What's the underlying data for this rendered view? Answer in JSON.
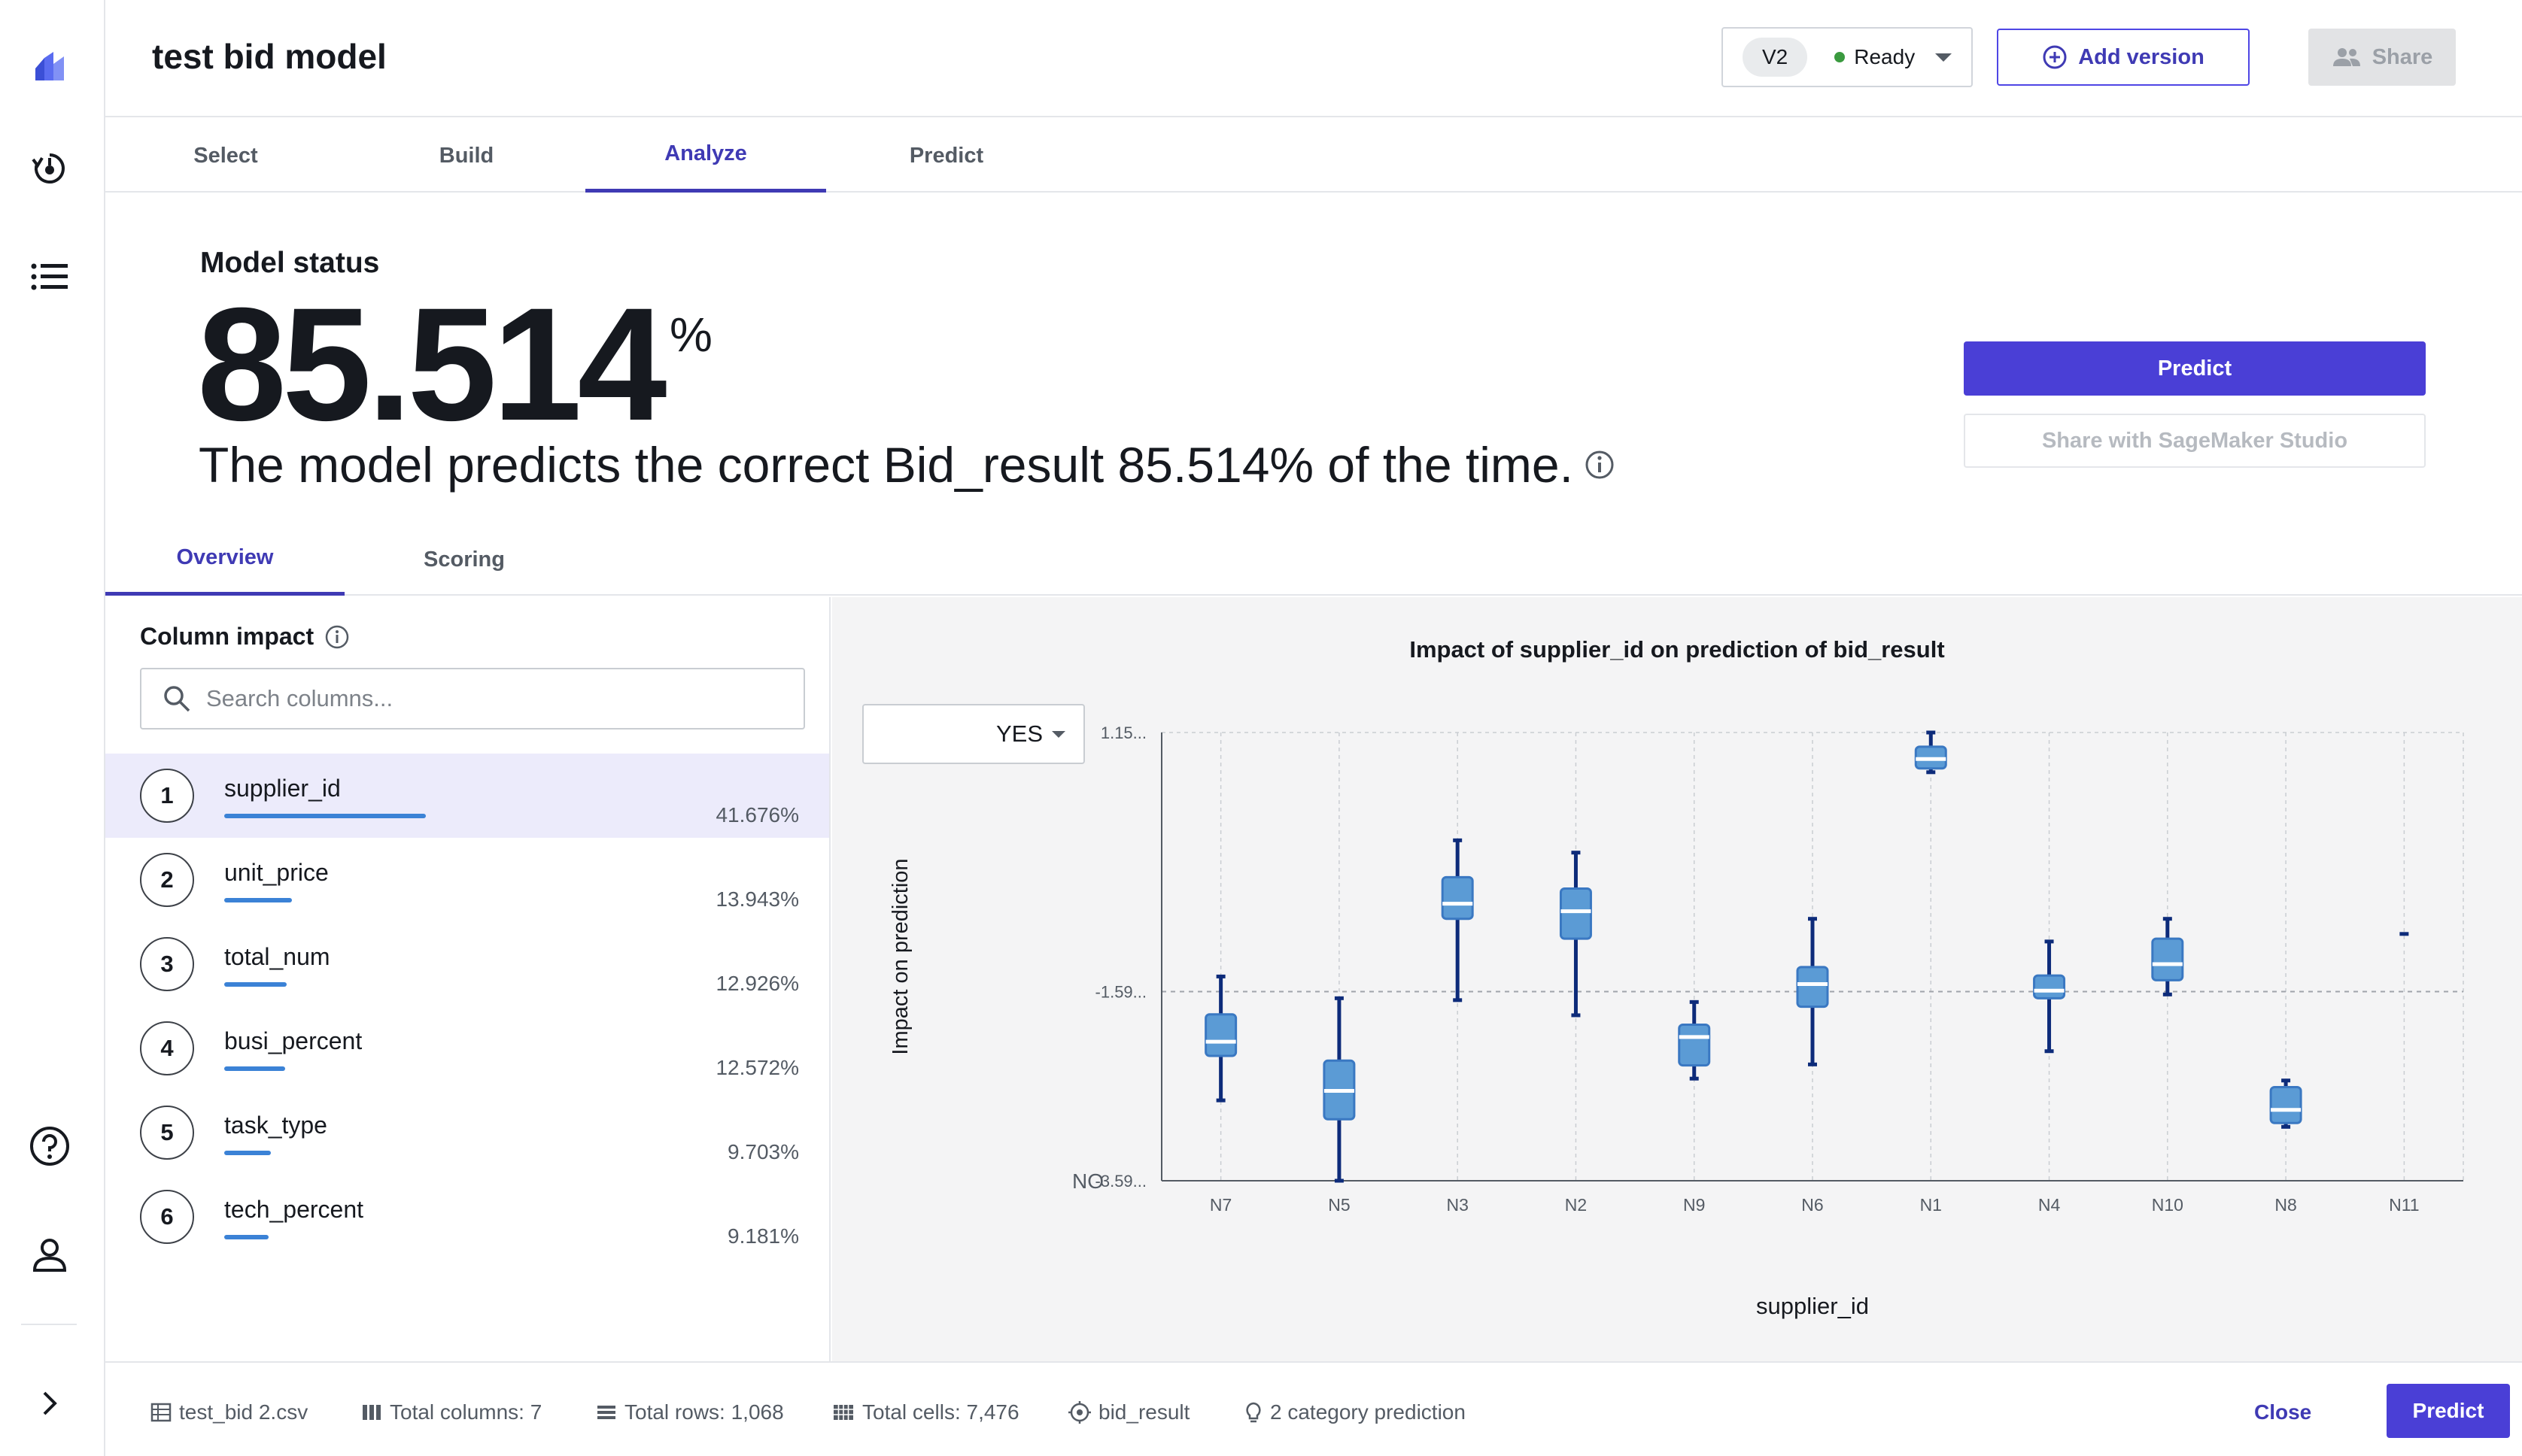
{
  "app": {
    "title": "test bid model"
  },
  "header": {
    "version": "V2",
    "status": "Ready",
    "add_version_label": "Add version",
    "share_label": "Share"
  },
  "tabs": [
    {
      "label": "Select",
      "active": false
    },
    {
      "label": "Build",
      "active": false
    },
    {
      "label": "Analyze",
      "active": true
    },
    {
      "label": "Predict",
      "active": false
    }
  ],
  "model_status": {
    "label": "Model status",
    "accuracy": "85.514",
    "percent_sign": "%",
    "description": "The model predicts the correct Bid_result 85.514% of the time.",
    "predict_button": "Predict",
    "share_button": "Share with SageMaker Studio"
  },
  "subtabs": [
    {
      "label": "Overview",
      "active": true
    },
    {
      "label": "Scoring",
      "active": false
    }
  ],
  "column_impact": {
    "title": "Column impact",
    "search_placeholder": "Search columns...",
    "columns": [
      {
        "rank": "1",
        "name": "supplier_id",
        "impact": "41.676%",
        "value": 41.676,
        "selected": true
      },
      {
        "rank": "2",
        "name": "unit_price",
        "impact": "13.943%",
        "value": 13.943,
        "selected": false
      },
      {
        "rank": "3",
        "name": "total_num",
        "impact": "12.926%",
        "value": 12.926,
        "selected": false
      },
      {
        "rank": "4",
        "name": "busi_percent",
        "impact": "12.572%",
        "value": 12.572,
        "selected": false
      },
      {
        "rank": "5",
        "name": "task_type",
        "impact": "9.703%",
        "value": 9.703,
        "selected": false
      },
      {
        "rank": "6",
        "name": "tech_percent",
        "impact": "9.181%",
        "value": 9.181,
        "selected": false
      }
    ]
  },
  "chart": {
    "class_select": "YES",
    "no_label": "NO"
  },
  "chart_data": {
    "type": "boxplot",
    "title": "Impact of supplier_id on prediction of bid_result",
    "xlabel": "supplier_id",
    "ylabel": "Impact on prediction",
    "y_tick_labels": [
      "1.15...",
      "-1.59...",
      "-3.59..."
    ],
    "ylim": [
      -3.59,
      1.15
    ],
    "categories": [
      "N7",
      "N5",
      "N3",
      "N2",
      "N9",
      "N6",
      "N1",
      "N4",
      "N10",
      "N8",
      "N11"
    ],
    "boxes": [
      {
        "name": "N7",
        "min": -2.74,
        "q1": -2.27,
        "median": -2.12,
        "q3": -1.83,
        "max": -1.43
      },
      {
        "name": "N5",
        "min": -3.59,
        "q1": -2.94,
        "median": -2.64,
        "q3": -2.32,
        "max": -1.66
      },
      {
        "name": "N3",
        "min": -1.68,
        "q1": -0.82,
        "median": -0.66,
        "q3": -0.38,
        "max": 0.01
      },
      {
        "name": "N2",
        "min": -1.84,
        "q1": -1.03,
        "median": -0.74,
        "q3": -0.5,
        "max": -0.12
      },
      {
        "name": "N9",
        "min": -2.51,
        "q1": -2.37,
        "median": -2.07,
        "q3": -1.94,
        "max": -1.7
      },
      {
        "name": "N6",
        "min": -2.36,
        "q1": -1.75,
        "median": -1.51,
        "q3": -1.33,
        "max": -0.82
      },
      {
        "name": "N1",
        "min": 0.73,
        "q1": 0.77,
        "median": 0.87,
        "q3": 1.0,
        "max": 1.15
      },
      {
        "name": "N4",
        "min": -2.22,
        "q1": -1.66,
        "median": -1.58,
        "q3": -1.42,
        "max": -1.06
      },
      {
        "name": "N10",
        "min": -1.62,
        "q1": -1.47,
        "median": -1.3,
        "q3": -1.03,
        "max": -0.82
      },
      {
        "name": "N8",
        "min": -3.02,
        "q1": -2.98,
        "median": -2.84,
        "q3": -2.6,
        "max": -2.53
      },
      {
        "name": "N11",
        "min": -0.98,
        "q1": -0.98,
        "median": -0.98,
        "q3": -0.98,
        "max": -0.98
      }
    ],
    "grid": true,
    "reference_line": -1.59
  },
  "footer": {
    "file": "test_bid 2.csv",
    "total_columns": "Total columns: 7",
    "total_rows": "Total rows: 1,068",
    "total_cells": "Total cells: 7,476",
    "target": "bid_result",
    "prediction_type": "2 category prediction",
    "close_label": "Close",
    "predict_label": "Predict"
  },
  "colors": {
    "accent": "#4a3fd6",
    "bar": "#3b82d6",
    "box_fill": "#5b9bd5",
    "whisker": "#0d2b7a",
    "selected_row": "#ecebfb"
  }
}
